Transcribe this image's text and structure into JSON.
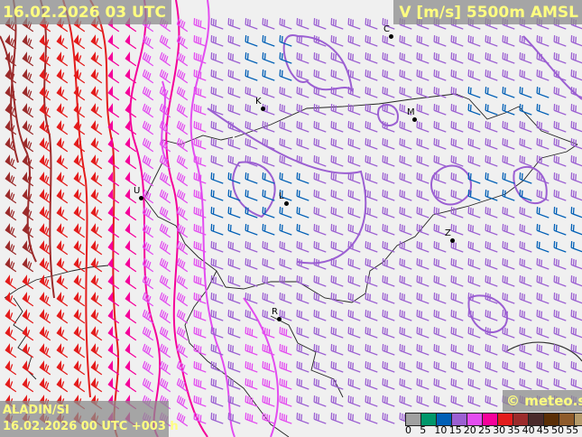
{
  "header": {
    "valid_time": "16.02.2026 03 UTC",
    "field": "V [m/s] 5500m AMSL"
  },
  "footer": {
    "model": "ALADIN/SI",
    "run": "16.02.2026 00 UTC +003 h",
    "copyright": "© meteo.si"
  },
  "legend": {
    "colors": [
      "#a0a0a0",
      "#00976a",
      "#005fb6",
      "#9b5fd2",
      "#e34cf0",
      "#f5009a",
      "#e31c1c",
      "#9b2b2b",
      "#4a2a2a",
      "#5a2e06",
      "#8e5a2a",
      "#b49a6a"
    ],
    "ticks": [
      "0",
      "5",
      "10",
      "15",
      "20",
      "25",
      "30",
      "35",
      "40",
      "45",
      "50",
      "55"
    ]
  },
  "cities": [
    {
      "label": "C",
      "marker": "city-dot"
    },
    {
      "label": "K",
      "marker": "city-dot"
    },
    {
      "label": "M",
      "marker": "city-dot"
    },
    {
      "label": "U",
      "marker": "city-dot"
    },
    {
      "label": "L",
      "marker": "city-dot"
    },
    {
      "label": "Z",
      "marker": "city-dot"
    },
    {
      "label": "R",
      "marker": "city-dot"
    }
  ]
}
